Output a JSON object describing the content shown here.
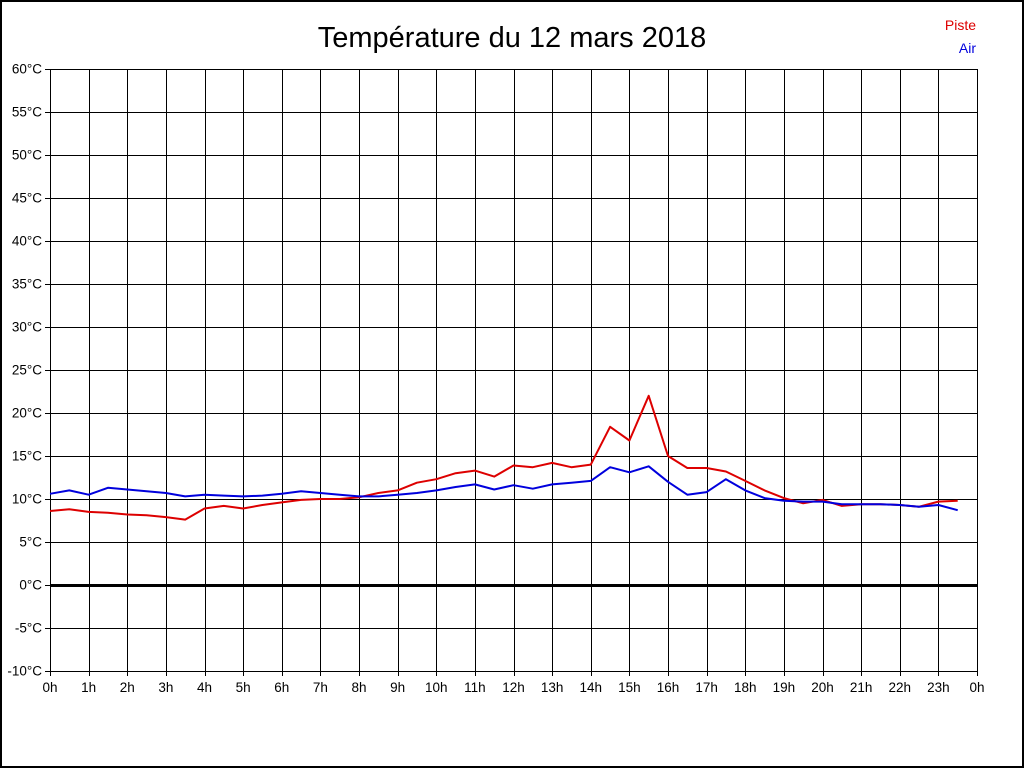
{
  "page": {
    "background": "#ffffff",
    "frame_border_color": "#000000"
  },
  "title": "Température du 12 mars 2018",
  "legend": {
    "position": "top-right",
    "items": [
      {
        "label": "Piste",
        "color": "#dd0000"
      },
      {
        "label": "Air",
        "color": "#0000dd"
      }
    ]
  },
  "chart_data": {
    "type": "line",
    "title": "Température du 12 mars 2018",
    "xlabel": "",
    "ylabel": "",
    "xlim": [
      0,
      24
    ],
    "ylim": [
      -10,
      60
    ],
    "x_tick_step_hours": 1,
    "y_tick_step_degrees": 5,
    "grid": true,
    "zero_line_bold": true,
    "legend_position": "top-right",
    "x_tick_labels": [
      "0h",
      "1h",
      "2h",
      "3h",
      "4h",
      "5h",
      "6h",
      "7h",
      "8h",
      "9h",
      "10h",
      "11h",
      "12h",
      "13h",
      "14h",
      "15h",
      "16h",
      "17h",
      "18h",
      "19h",
      "20h",
      "21h",
      "22h",
      "23h",
      "0h"
    ],
    "y_tick_labels_top_to_bottom": [
      "60°C",
      "55°C",
      "50°C",
      "45°C",
      "40°C",
      "35°C",
      "30°C",
      "25°C",
      "20°C",
      "15°C",
      "10°C",
      "5°C",
      "0°C",
      "-5°C",
      "-10°C"
    ],
    "x_hours": [
      0,
      0.5,
      1,
      1.5,
      2,
      2.5,
      3,
      3.5,
      4,
      4.5,
      5,
      5.5,
      6,
      6.5,
      7,
      7.5,
      8,
      8.5,
      9,
      9.5,
      10,
      10.5,
      11,
      11.5,
      12,
      12.5,
      13,
      13.5,
      14,
      14.5,
      15,
      15.5,
      16,
      16.5,
      17,
      17.5,
      18,
      18.5,
      19,
      19.5,
      20,
      20.5,
      21,
      21.5,
      22,
      22.5,
      23,
      23.5
    ],
    "series": [
      {
        "name": "Piste",
        "color": "#dd0000",
        "values": [
          8.6,
          8.8,
          8.5,
          8.4,
          8.2,
          8.1,
          7.9,
          7.6,
          8.9,
          9.2,
          8.9,
          9.3,
          9.6,
          9.9,
          10.0,
          10.0,
          10.2,
          10.7,
          11.0,
          11.9,
          12.3,
          13.0,
          13.3,
          12.6,
          13.9,
          13.7,
          14.2,
          13.7,
          14.0,
          18.4,
          16.8,
          22.0,
          15.0,
          13.6,
          13.6,
          13.2,
          12.1,
          11.0,
          10.1,
          9.5,
          9.9,
          9.2,
          9.4,
          9.4,
          9.3,
          9.1,
          9.7,
          9.8
        ]
      },
      {
        "name": "Air",
        "color": "#0000dd",
        "values": [
          10.6,
          11.0,
          10.5,
          11.3,
          11.1,
          10.9,
          10.7,
          10.3,
          10.5,
          10.4,
          10.3,
          10.4,
          10.6,
          10.9,
          10.7,
          10.5,
          10.3,
          10.3,
          10.5,
          10.7,
          11.0,
          11.4,
          11.7,
          11.1,
          11.6,
          11.2,
          11.7,
          11.9,
          12.1,
          13.7,
          13.1,
          13.8,
          12.0,
          10.5,
          10.8,
          12.3,
          11.0,
          10.1,
          9.8,
          9.7,
          9.7,
          9.4,
          9.4,
          9.4,
          9.3,
          9.1,
          9.3,
          8.7
        ]
      }
    ]
  }
}
